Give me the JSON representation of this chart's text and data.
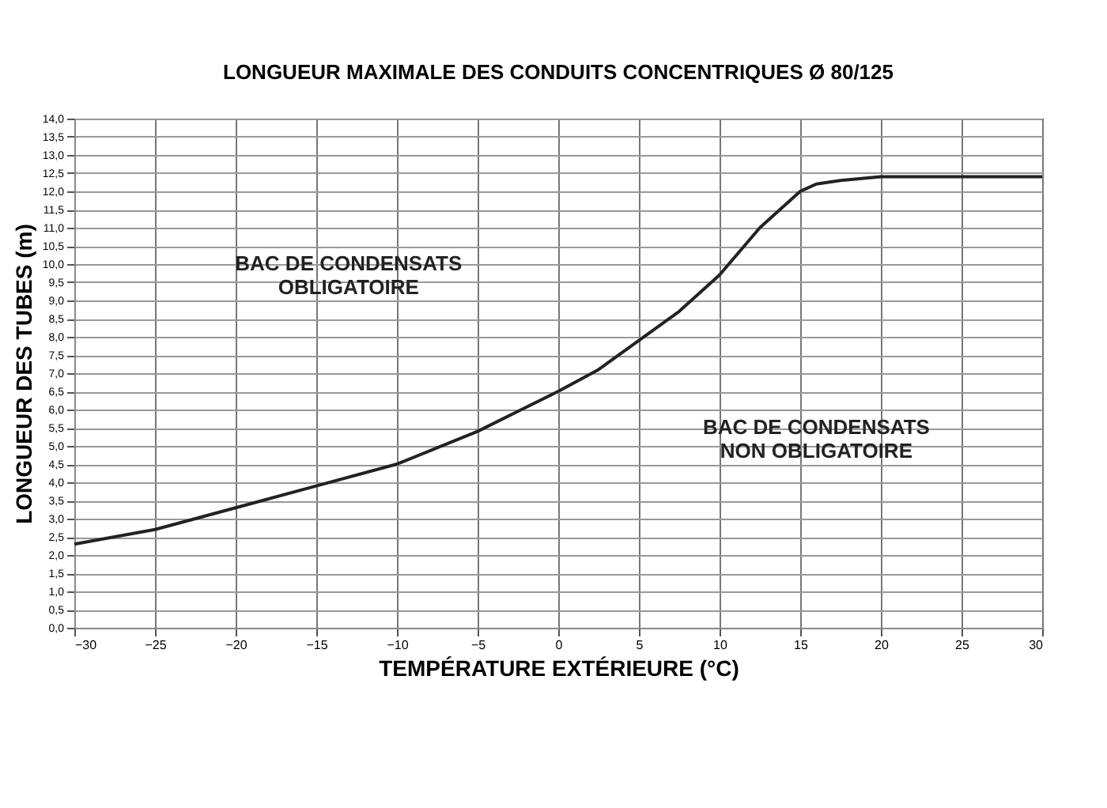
{
  "chart_data": {
    "type": "line",
    "title": "LONGUEUR MAXIMALE DES CONDUITS CONCENTRIQUES Ø 80/125",
    "xlabel": "TEMPÉRATURE EXTÉRIEURE (°C)",
    "ylabel": "LONGUEUR DES TUBES (m)",
    "x": [
      -30,
      -25,
      -20,
      -15,
      -10,
      -5,
      -2.5,
      0,
      2.5,
      5,
      7.5,
      10,
      12.5,
      15,
      16,
      17.5,
      20,
      25,
      30
    ],
    "series": [
      {
        "color": "#222222",
        "values": [
          2.3,
          2.7,
          3.3,
          3.9,
          4.5,
          5.4,
          5.95,
          6.5,
          7.1,
          7.9,
          8.7,
          9.7,
          11.0,
          12.0,
          12.2,
          12.3,
          12.4,
          12.4,
          12.4
        ]
      }
    ],
    "xlim": [
      -30,
      30
    ],
    "xticks": [
      -30,
      -25,
      -20,
      -15,
      -10,
      -5,
      0,
      5,
      10,
      15,
      20,
      25,
      30
    ],
    "ylim": [
      0,
      14
    ],
    "yticks": [
      {
        "value": 0,
        "label": "0,0"
      },
      {
        "value": 0.5,
        "label": "0,5"
      },
      {
        "value": 1,
        "label": "1,0"
      },
      {
        "value": 1.5,
        "label": "1,5"
      },
      {
        "value": 2,
        "label": "2,0"
      },
      {
        "value": 2.5,
        "label": "2,5"
      },
      {
        "value": 3,
        "label": "3,0"
      },
      {
        "value": 3.5,
        "label": "3,5"
      },
      {
        "value": 4,
        "label": "4,0"
      },
      {
        "value": 4.5,
        "label": "4,5"
      },
      {
        "value": 5,
        "label": "5,0"
      },
      {
        "value": 5.5,
        "label": "5,5"
      },
      {
        "value": 6,
        "label": "6,0"
      },
      {
        "value": 6.5,
        "label": "6,5"
      },
      {
        "value": 7,
        "label": "7,0"
      },
      {
        "value": 7.5,
        "label": "7,5"
      },
      {
        "value": 8,
        "label": "8,0"
      },
      {
        "value": 8.5,
        "label": "8,5"
      },
      {
        "value": 9,
        "label": "9,0"
      },
      {
        "value": 9.5,
        "label": "9,5"
      },
      {
        "value": 10,
        "label": "10,0"
      },
      {
        "value": 10.5,
        "label": "10,5"
      },
      {
        "value": 11,
        "label": "11,0"
      },
      {
        "value": 11.5,
        "label": "11,5"
      },
      {
        "value": 12,
        "label": "12,0"
      },
      {
        "value": 12.5,
        "label": "12,5"
      },
      {
        "value": 13,
        "label": "13,0"
      },
      {
        "value": 13.5,
        "label": "13,5"
      },
      {
        "value": 14,
        "label": "14,0"
      }
    ],
    "annotations": [
      "BAC DE CONDENSATS\nOBLIGATOIRE",
      "BAC DE CONDENSATS\nNON OBLIGATOIRE"
    ],
    "grid": true,
    "marker": "none",
    "line_style": "solid"
  }
}
